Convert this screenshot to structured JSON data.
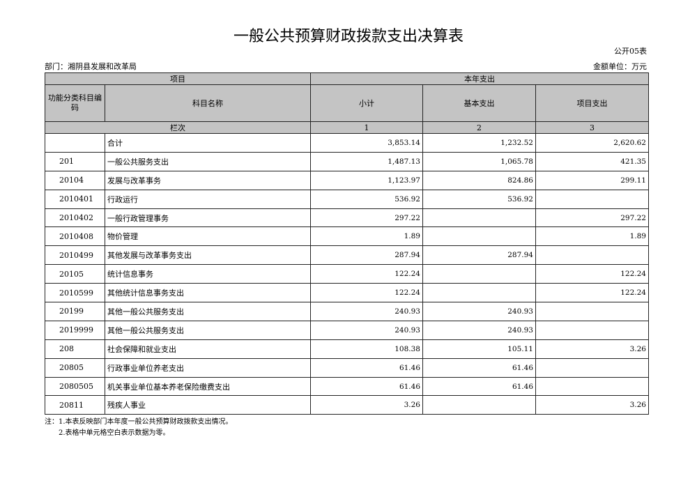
{
  "title": "一般公共预算财政拨款支出决算表",
  "form_no": "公开05表",
  "department": "部门：湘阴县发展和改革局",
  "unit": "金额单位：万元",
  "header": {
    "project": "项目",
    "current_year": "本年支出",
    "code": "功能分类科目编码",
    "name": "科目名称",
    "subtotal": "小计",
    "basic": "基本支出",
    "program": "项目支出",
    "column_index": "栏次",
    "col1": "1",
    "col2": "2",
    "col3": "3"
  },
  "rows": [
    {
      "code": "",
      "name": "合计",
      "subtotal": "3,853.14",
      "basic": "1,232.52",
      "program": "2,620.62"
    },
    {
      "code": "201",
      "name": "一般公共服务支出",
      "subtotal": "1,487.13",
      "basic": "1,065.78",
      "program": "421.35"
    },
    {
      "code": "20104",
      "name": "发展与改革事务",
      "subtotal": "1,123.97",
      "basic": "824.86",
      "program": "299.11"
    },
    {
      "code": "2010401",
      "name": "行政运行",
      "subtotal": "536.92",
      "basic": "536.92",
      "program": ""
    },
    {
      "code": "2010402",
      "name": "一般行政管理事务",
      "subtotal": "297.22",
      "basic": "",
      "program": "297.22"
    },
    {
      "code": "2010408",
      "name": "物价管理",
      "subtotal": "1.89",
      "basic": "",
      "program": "1.89"
    },
    {
      "code": "2010499",
      "name": "其他发展与改革事务支出",
      "subtotal": "287.94",
      "basic": "287.94",
      "program": ""
    },
    {
      "code": "20105",
      "name": "统计信息事务",
      "subtotal": "122.24",
      "basic": "",
      "program": "122.24"
    },
    {
      "code": "2010599",
      "name": "其他统计信息事务支出",
      "subtotal": "122.24",
      "basic": "",
      "program": "122.24"
    },
    {
      "code": "20199",
      "name": "其他一般公共服务支出",
      "subtotal": "240.93",
      "basic": "240.93",
      "program": ""
    },
    {
      "code": "2019999",
      "name": "其他一般公共服务支出",
      "subtotal": "240.93",
      "basic": "240.93",
      "program": ""
    },
    {
      "code": "208",
      "name": "社会保障和就业支出",
      "subtotal": "108.38",
      "basic": "105.11",
      "program": "3.26"
    },
    {
      "code": "20805",
      "name": "行政事业单位养老支出",
      "subtotal": "61.46",
      "basic": "61.46",
      "program": ""
    },
    {
      "code": "2080505",
      "name": "机关事业单位基本养老保险缴费支出",
      "subtotal": "61.46",
      "basic": "61.46",
      "program": ""
    },
    {
      "code": "20811",
      "name": "残疾人事业",
      "subtotal": "3.26",
      "basic": "",
      "program": "3.26"
    }
  ],
  "notes": [
    "注：1.本表反映部门本年度一般公共预算财政拨款支出情况。",
    "　　2.表格中单元格空白表示数据为零。"
  ]
}
